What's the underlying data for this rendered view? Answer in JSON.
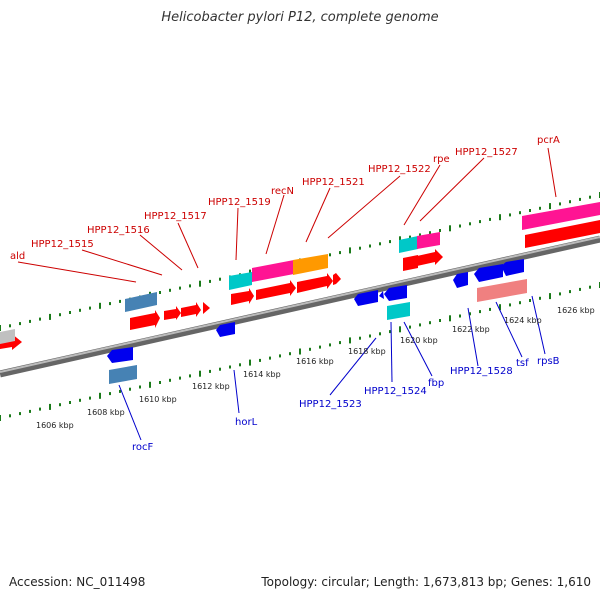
{
  "title": "Helicobacter pylori P12, complete genome",
  "footer": {
    "accession": "Accession: NC_011498",
    "summary": "Topology: circular; Length: 1,673,813 bp; Genes: 1,610"
  },
  "colors": {
    "upper_labels": "#cc0000",
    "lower_labels": "#0000cc",
    "ticks": "#1a7a1a",
    "backbone": "#888888"
  },
  "ruler_ticks": [
    "1606 kbp",
    "1608 kbp",
    "1610 kbp",
    "1612 kbp",
    "1614 kbp",
    "1616 kbp",
    "1618 kbp",
    "1620 kbp",
    "1622 kbp",
    "1624 kbp",
    "1626 kbp"
  ],
  "upper_genes": [
    "ald",
    "HPP12_1515",
    "HPP12_1516",
    "HPP12_1517",
    "HPP12_1519",
    "recN",
    "HPP12_1521",
    "HPP12_1522",
    "rpe",
    "HPP12_1527",
    "pcrA"
  ],
  "lower_genes": [
    "rocF",
    "horL",
    "HPP12_1523",
    "HPP12_1524",
    "fbp",
    "HPP12_1528",
    "tsf",
    "rpsB"
  ]
}
